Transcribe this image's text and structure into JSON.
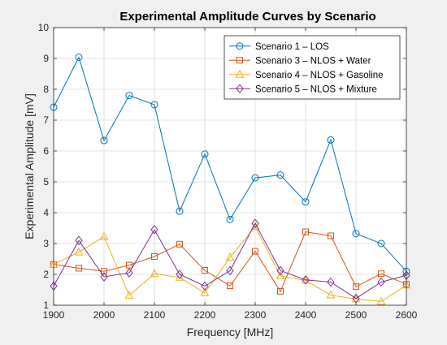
{
  "chart_data": {
    "type": "line",
    "title": "Experimental Amplitude Curves by Scenario",
    "xlabel": "Frequency [MHz]",
    "ylabel": "Experimental Amplitude [mV]",
    "xlim": [
      1900,
      2600
    ],
    "ylim": [
      1,
      10
    ],
    "xticks": [
      1900,
      2000,
      2100,
      2200,
      2300,
      2400,
      2500,
      2600
    ],
    "yticks": [
      1,
      2,
      3,
      4,
      5,
      6,
      7,
      8,
      9,
      10
    ],
    "grid": true,
    "legend_position": "top-right",
    "x": [
      1900,
      1950,
      2000,
      2050,
      2100,
      2150,
      2200,
      2250,
      2300,
      2350,
      2400,
      2450,
      2500,
      2550,
      2600
    ],
    "series": [
      {
        "name": "Scenario 1 – LOS",
        "color": "#0072BD",
        "marker": "circle",
        "values": [
          7.42,
          9.04,
          6.34,
          7.8,
          7.5,
          4.05,
          5.9,
          3.78,
          5.13,
          5.22,
          4.35,
          6.36,
          3.32,
          3.0,
          2.1
        ]
      },
      {
        "name": "Scenario 3 – NLOS + Water",
        "color": "#D95319",
        "marker": "square",
        "values": [
          2.32,
          2.2,
          2.1,
          2.3,
          2.58,
          2.98,
          2.13,
          1.63,
          2.75,
          1.45,
          3.38,
          3.25,
          1.6,
          2.02,
          1.68
        ]
      },
      {
        "name": "Scenario 4 – NLOS + Gasoline",
        "color": "#EDB120",
        "marker": "triangle",
        "values": [
          2.32,
          2.72,
          3.22,
          1.32,
          2.02,
          1.9,
          1.4,
          2.55,
          3.55,
          1.95,
          1.8,
          1.33,
          1.2,
          1.12,
          1.65
        ]
      },
      {
        "name": "Scenario 5 – NLOS + Mixture",
        "color": "#7E2F8E",
        "marker": "diamond",
        "values": [
          1.62,
          3.1,
          1.92,
          2.05,
          3.45,
          2.0,
          1.62,
          2.12,
          3.65,
          2.12,
          1.82,
          1.75,
          1.22,
          1.75,
          1.97
        ]
      }
    ]
  }
}
